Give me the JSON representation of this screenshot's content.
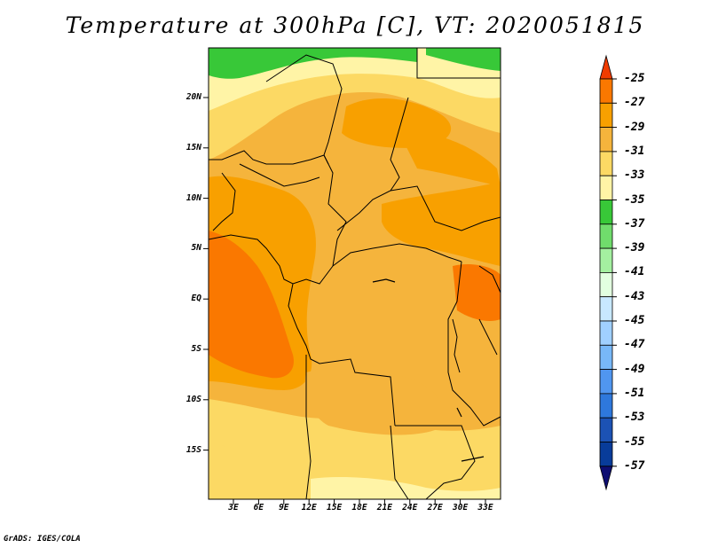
{
  "title": "Temperature at 300hPa [C], VT: 2020051815",
  "credit": "GrADS: IGES/COLA",
  "map": {
    "lat_labels": [
      "20N",
      "15N",
      "10N",
      "5N",
      "EQ",
      "5S",
      "10S",
      "15S"
    ],
    "lon_labels": [
      "3E",
      "6E",
      "9E",
      "12E",
      "15E",
      "18E",
      "21E",
      "24E",
      "27E",
      "30E",
      "33E"
    ]
  },
  "colorbar": {
    "labels": [
      "-25",
      "-27",
      "-29",
      "-31",
      "-33",
      "-35",
      "-37",
      "-39",
      "-41",
      "-43",
      "-45",
      "-47",
      "-49",
      "-51",
      "-53",
      "-55",
      "-57"
    ],
    "colors": [
      "#f03c00",
      "#fa7800",
      "#f8a000",
      "#f5b43c",
      "#fcd964",
      "#fff4a6",
      "#38c838",
      "#70dc6c",
      "#a4f0a0",
      "#e2ffe0",
      "#c8e8ff",
      "#a0d0ff",
      "#78b8f8",
      "#5096f0",
      "#2e78dc",
      "#1c52b4",
      "#083c9a",
      "#0e0e72"
    ]
  },
  "colors": {
    "fill_warm": "#fa7800",
    "fill_main": "#f8a000",
    "fill_mid": "#f5b43c",
    "fill_cool": "#fcd964",
    "fill_light": "#fff4a6",
    "fill_green": "#38c838"
  }
}
